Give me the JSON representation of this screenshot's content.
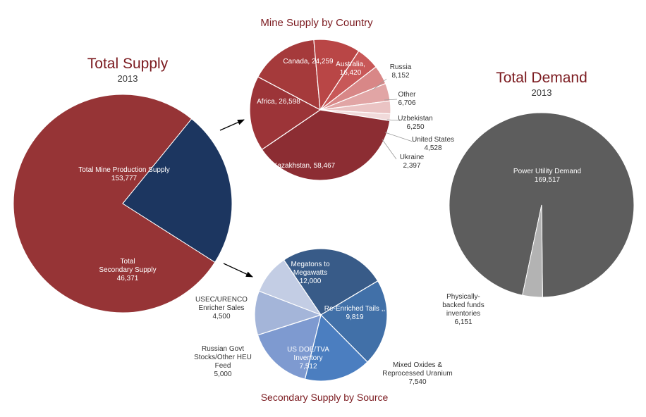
{
  "chart_data": [
    {
      "type": "pie",
      "title": "Total Supply",
      "subtitle": "2013",
      "slices": [
        {
          "label": "Total Mine Production Supply",
          "value": 153777,
          "value_text": "153,777",
          "color": "#963436"
        },
        {
          "label": "Total Secondary Supply",
          "value": 46371,
          "value_text": "46,371",
          "color": "#1c3660"
        }
      ]
    },
    {
      "type": "pie",
      "title": "Mine Supply by Country",
      "slices": [
        {
          "label": "Canada",
          "value": 24259,
          "value_text": "24,259",
          "color": "#a53a3b"
        },
        {
          "label": "Australia",
          "value": 16420,
          "value_text": "16,420",
          "color": "#b94646"
        },
        {
          "label": "Russia",
          "value": 8152,
          "value_text": "8,152",
          "color": "#c85858"
        },
        {
          "label": "Other",
          "value": 6706,
          "value_text": "6,706",
          "color": "#d88787"
        },
        {
          "label": "Uzbekistan",
          "value": 6250,
          "value_text": "6,250",
          "color": "#e1a5a5"
        },
        {
          "label": "United States",
          "value": 4528,
          "value_text": "4,528",
          "color": "#eac3c3"
        },
        {
          "label": "Ukraine",
          "value": 2397,
          "value_text": "2,397",
          "color": "#f1dada"
        },
        {
          "label": "Kazakhstan",
          "value": 58467,
          "value_text": "58,467",
          "color": "#8c2d33"
        },
        {
          "label": "Africa",
          "value": 26598,
          "value_text": "26,598",
          "color": "#9c3438"
        }
      ]
    },
    {
      "type": "pie",
      "title": "Secondary Supply by Source",
      "slices": [
        {
          "label": "Megatons to Megawatts",
          "value": 12000,
          "value_text": "12,000",
          "color": "#385b88"
        },
        {
          "label": "Re-Enriched Tails ,",
          "value": 9819,
          "value_text": "9,819",
          "color": "#4170a8"
        },
        {
          "label": "Mixed Oxides & Reprocessed Uranium",
          "value": 7540,
          "value_text": "7,540",
          "color": "#4b7ec0"
        },
        {
          "label": "US DOE/TVA Inventory",
          "value": 7512,
          "value_text": "7,512",
          "color": "#7e9ad0"
        },
        {
          "label": "Russian Govt Stocks/Other HEU Feed",
          "value": 5000,
          "value_text": "5,000",
          "color": "#a4b5d9"
        },
        {
          "label": "USEC/URENCO Enricher Sales",
          "value": 4500,
          "value_text": "4,500",
          "color": "#c3cde4"
        }
      ]
    },
    {
      "type": "pie",
      "title": "Total Demand",
      "subtitle": "2013",
      "slices": [
        {
          "label": "Power Utility Demand",
          "value": 169517,
          "value_text": "169,517",
          "color": "#5d5d5d"
        },
        {
          "label": "Physically-backed funds inventories",
          "value": 6151,
          "value_text": "6,151",
          "color": "#b3b3b3"
        }
      ]
    }
  ]
}
